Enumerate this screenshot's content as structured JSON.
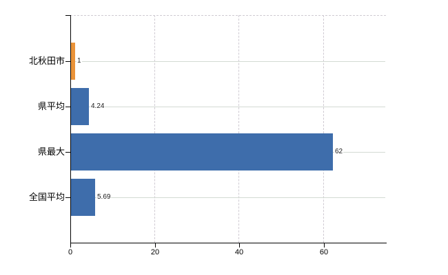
{
  "chart_data": {
    "type": "bar",
    "orientation": "horizontal",
    "title": "",
    "xlabel": "",
    "ylabel": "",
    "categories": [
      "北秋田市",
      "県平均",
      "県最大",
      "全国平均"
    ],
    "values": [
      1,
      4.24,
      62,
      5.69
    ],
    "value_labels": [
      "1",
      "4.24",
      "62",
      "5.69"
    ],
    "bar_colors": [
      "#ea9339",
      "#3e6dab",
      "#3e6dab",
      "#3e6dab"
    ],
    "x_ticks": [
      0,
      20,
      40,
      60
    ],
    "x_tick_labels": [
      "0",
      "20",
      "40",
      "60"
    ],
    "xlim": [
      0,
      74.7
    ],
    "grid": true,
    "legend": false,
    "colors": {
      "highlight_bar": "#ea9339",
      "default_bar": "#3e6dab",
      "axis": "#000000",
      "hgrid": "#d3dad3",
      "vgrid": "#cfcad2",
      "background": "#ffffff"
    }
  }
}
